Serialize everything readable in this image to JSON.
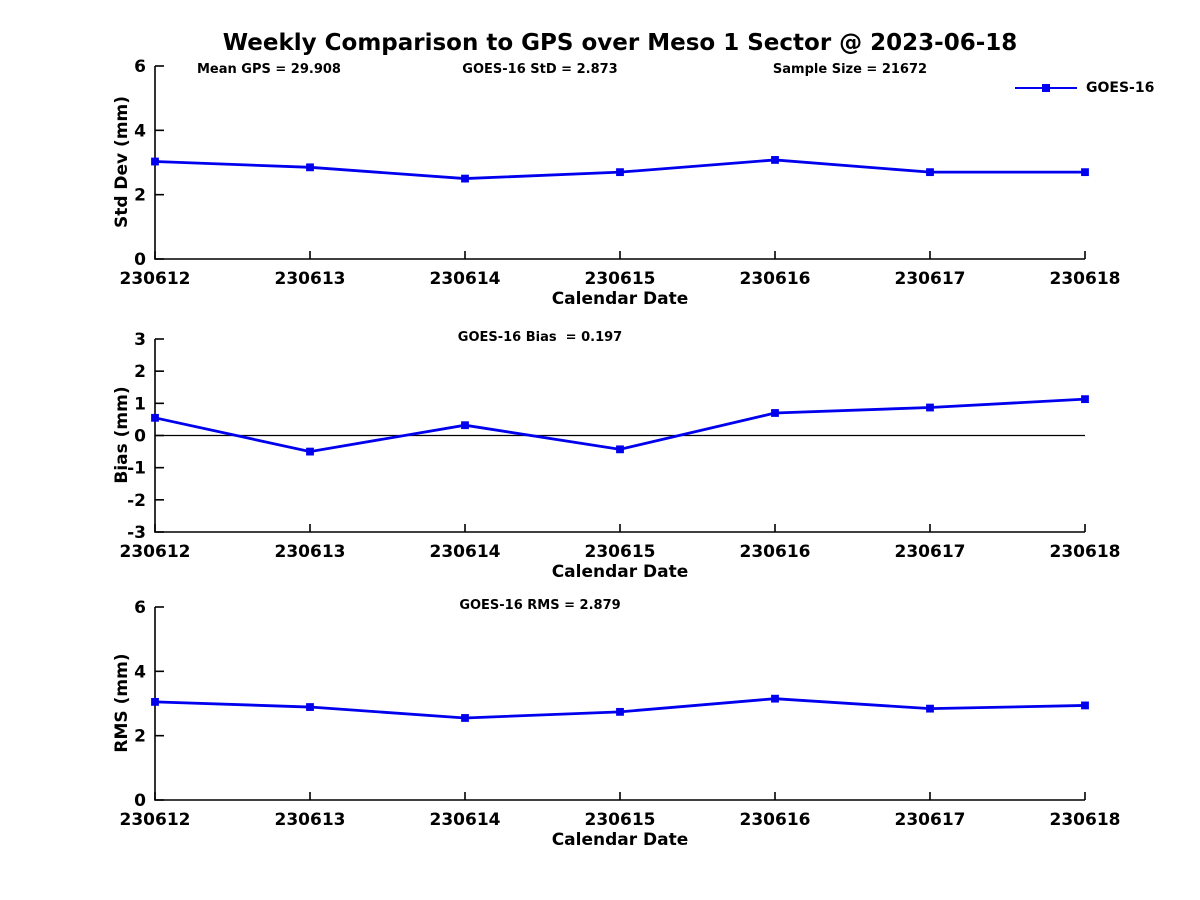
{
  "title": "Weekly Comparison to GPS over Meso 1 Sector @ 2023-06-18",
  "legend": {
    "label": "GOES-16",
    "color": "#0000EE"
  },
  "colors": {
    "line": "#0000EE",
    "axis": "#000000"
  },
  "chart_data": [
    {
      "type": "line",
      "name": "std-dev-subplot",
      "categories": [
        "230612",
        "230613",
        "230614",
        "230615",
        "230616",
        "230617",
        "230618"
      ],
      "series": [
        {
          "name": "GOES-16",
          "values": [
            3.03,
            2.85,
            2.5,
            2.7,
            3.08,
            2.7,
            2.7
          ]
        }
      ],
      "xlabel": "Calendar Date",
      "ylabel": "Std Dev (mm)",
      "ylim": [
        0,
        6
      ],
      "yticks": [
        0,
        2,
        4,
        6
      ],
      "zero_line": false,
      "legend_position": "top-right",
      "grid": false,
      "annotations": [
        "Mean GPS = 29.908",
        "GOES-16 StD = 2.873",
        "Sample Size = 21672"
      ]
    },
    {
      "type": "line",
      "name": "bias-subplot",
      "categories": [
        "230612",
        "230613",
        "230614",
        "230615",
        "230616",
        "230617",
        "230618"
      ],
      "series": [
        {
          "name": "GOES-16",
          "values": [
            0.55,
            -0.5,
            0.32,
            -0.43,
            0.7,
            0.87,
            1.13
          ]
        }
      ],
      "xlabel": "Calendar Date",
      "ylabel": "Bias (mm)",
      "ylim": [
        -3,
        3
      ],
      "yticks": [
        -3,
        -2,
        -1,
        0,
        1,
        2,
        3
      ],
      "zero_line": true,
      "grid": false,
      "annotations": [
        "GOES-16 Bias  = 0.197"
      ]
    },
    {
      "type": "line",
      "name": "rms-subplot",
      "categories": [
        "230612",
        "230613",
        "230614",
        "230615",
        "230616",
        "230617",
        "230618"
      ],
      "series": [
        {
          "name": "GOES-16",
          "values": [
            3.05,
            2.89,
            2.55,
            2.74,
            3.15,
            2.84,
            2.94
          ]
        }
      ],
      "xlabel": "Calendar Date",
      "ylabel": "RMS (mm)",
      "ylim": [
        0,
        6
      ],
      "yticks": [
        0,
        2,
        4,
        6
      ],
      "zero_line": false,
      "grid": false,
      "annotations": [
        "GOES-16 RMS = 2.879"
      ]
    }
  ]
}
